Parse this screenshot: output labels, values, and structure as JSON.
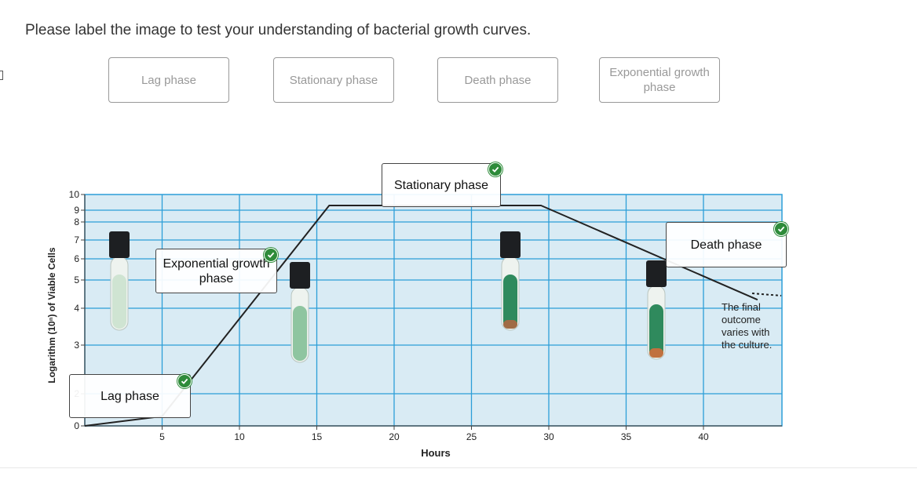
{
  "prompt": "Please label the image to test your understanding of bacterial growth curves.",
  "label_bank": [
    {
      "text": "Lag phase"
    },
    {
      "text": "Stationary phase"
    },
    {
      "text": "Death phase"
    },
    {
      "text": "Exponential growth phase"
    }
  ],
  "placed_labels": [
    {
      "text": "Stationary phase",
      "status": "correct"
    },
    {
      "text": "Death phase",
      "status": "correct"
    },
    {
      "text": "Exponential growth phase",
      "status": "correct"
    },
    {
      "text": "Lag phase",
      "status": "correct"
    }
  ],
  "chart_data": {
    "type": "line",
    "xlabel": "Hours",
    "ylabel": "Logarithm (10ⁿ) of Viable Cells",
    "xticks": [
      5,
      10,
      15,
      20,
      25,
      30,
      35,
      40
    ],
    "yticks": [
      "0",
      "2",
      "3",
      "4",
      "5",
      "6",
      "7",
      "8",
      "9",
      "10"
    ],
    "series": [
      {
        "x": [
          0,
          5,
          15.8,
          29.5,
          43.5
        ],
        "y": [
          0,
          0.6,
          9.3,
          9.3,
          4.3
        ]
      }
    ],
    "annotation": "The final outcome varies with the culture.",
    "grid": true,
    "colors": {
      "plot_bg": "#d9ebf4",
      "grid": "#2c9ed8",
      "curve": "#222222"
    }
  }
}
